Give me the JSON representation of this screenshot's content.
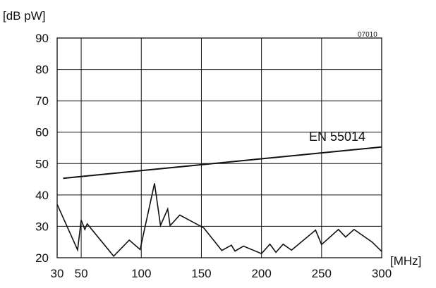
{
  "chart_data": {
    "type": "line",
    "ylabel": "[dB pW]",
    "xlabel": "[MHz]",
    "code": "07010",
    "xlim": [
      30,
      300
    ],
    "ylim": [
      20,
      90
    ],
    "x_ticks": [
      30,
      50,
      100,
      150,
      200,
      250,
      300
    ],
    "y_ticks": [
      20,
      30,
      40,
      50,
      60,
      70,
      80,
      90
    ],
    "grid": true,
    "annotation": "EN 55014",
    "series": [
      {
        "name": "EN 55014",
        "points": [
          [
            35,
            45.3
          ],
          [
            300,
            55.3
          ]
        ]
      },
      {
        "points": [
          [
            30,
            37.0
          ],
          [
            47,
            22.5
          ],
          [
            50,
            32.0
          ],
          [
            53,
            29.0
          ],
          [
            55,
            30.8
          ],
          [
            77,
            20.5
          ],
          [
            90,
            25.6
          ],
          [
            99,
            22.6
          ],
          [
            111,
            43.7
          ],
          [
            116,
            30.3
          ],
          [
            122,
            35.5
          ],
          [
            124,
            30.2
          ],
          [
            132,
            33.6
          ],
          [
            152,
            29.5
          ],
          [
            167,
            22.3
          ],
          [
            175,
            24.0
          ],
          [
            178,
            22.1
          ],
          [
            185,
            23.7
          ],
          [
            200,
            21.3
          ],
          [
            207,
            24.3
          ],
          [
            212,
            21.7
          ],
          [
            218,
            24.3
          ],
          [
            225,
            22.4
          ],
          [
            245,
            28.8
          ],
          [
            250,
            24.2
          ],
          [
            264,
            29.0
          ],
          [
            270,
            26.6
          ],
          [
            277,
            29.0
          ],
          [
            292,
            25.0
          ],
          [
            300,
            22.0
          ]
        ]
      }
    ]
  }
}
